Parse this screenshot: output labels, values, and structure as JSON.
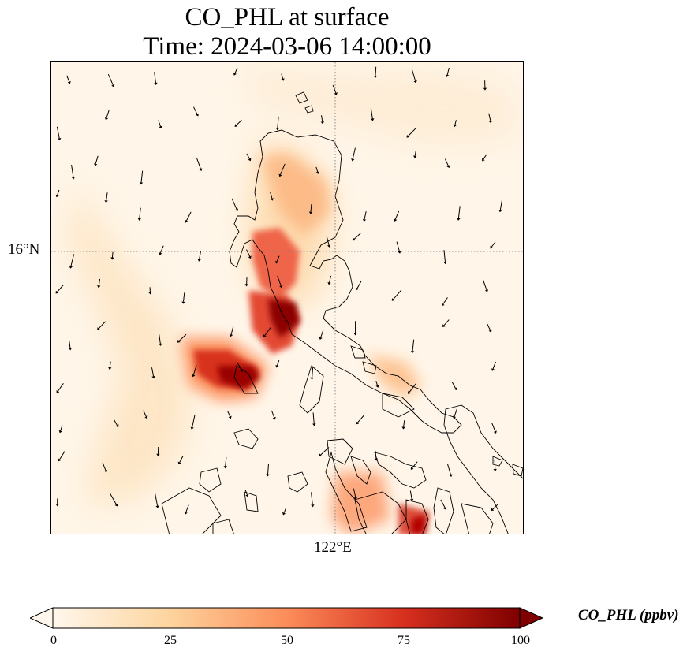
{
  "title": {
    "line1": "CO_PHL at surface",
    "line2": "Time: 2024-03-06 14:00:00"
  },
  "map": {
    "variable": "CO_PHL",
    "level": "surface",
    "gridlines": [
      "16°N",
      "122°E"
    ],
    "lat_tick_label": "16°N",
    "lon_tick_label": "122°E",
    "gridline_style": "dotted",
    "features": [
      "coastlines",
      "wind-vectors",
      "concentration-field"
    ]
  },
  "colorbar": {
    "label": "CO_PHL (ppbv)",
    "ticks": [
      "0",
      "25",
      "50",
      "75",
      "100"
    ],
    "min": 0,
    "max": 100,
    "extend": "both",
    "colormap": "OrRd",
    "colors": [
      "#fff7ec",
      "#fdd49e",
      "#fc8d59",
      "#d7301f",
      "#7f0000"
    ]
  }
}
